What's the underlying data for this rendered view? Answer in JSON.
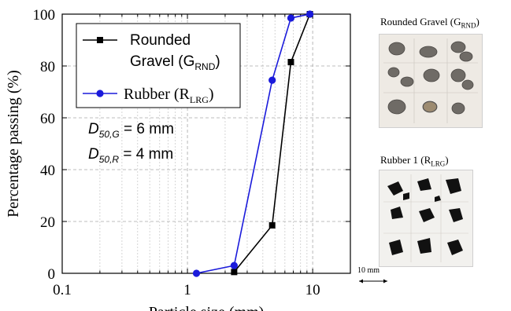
{
  "chart_data": {
    "type": "line",
    "xscale": "log",
    "xlim": [
      0.1,
      20
    ],
    "ylim": [
      0,
      100
    ],
    "xlabel": "Particle size (mm)",
    "ylabel": "Percentage passing (%)",
    "xticks": [
      0.1,
      1,
      10
    ],
    "xtick_labels": [
      "0.1",
      "1",
      "10"
    ],
    "yticks": [
      0,
      20,
      40,
      60,
      80,
      100
    ],
    "ytick_labels": [
      "0",
      "20",
      "40",
      "60",
      "80",
      "100"
    ],
    "grid": true,
    "legend_position": "top-left",
    "series": [
      {
        "name": "Rounded Gravel (GRND)",
        "label_lines": [
          "Rounded",
          "Gravel (G",
          "RND",
          ")"
        ],
        "color": "#000000",
        "marker": "square",
        "x": [
          2.36,
          4.75,
          6.7,
          9.5
        ],
        "y": [
          0.5,
          18.5,
          81.5,
          100
        ]
      },
      {
        "name": "Rubber (RLRG)",
        "label_lines": [
          "Rubber (R",
          "LRG",
          ")"
        ],
        "color": "#1a1adb",
        "marker": "circle",
        "x": [
          1.18,
          2.36,
          4.75,
          6.7,
          9.5
        ],
        "y": [
          0,
          3,
          74.5,
          98.5,
          100
        ]
      }
    ],
    "annotations": [
      {
        "main": "D",
        "sub": "50,G",
        "rest": " = 6 mm"
      },
      {
        "main": "D",
        "sub": "50,R",
        "rest": " = 4 mm"
      }
    ]
  },
  "photos": {
    "gravel": {
      "title": "Rounded Gravel (G",
      "sub": "RND",
      "end": ")"
    },
    "rubber": {
      "title": "Rubber 1 (R",
      "sub": "LRG",
      "end": ")"
    },
    "scale": "10 mm"
  }
}
